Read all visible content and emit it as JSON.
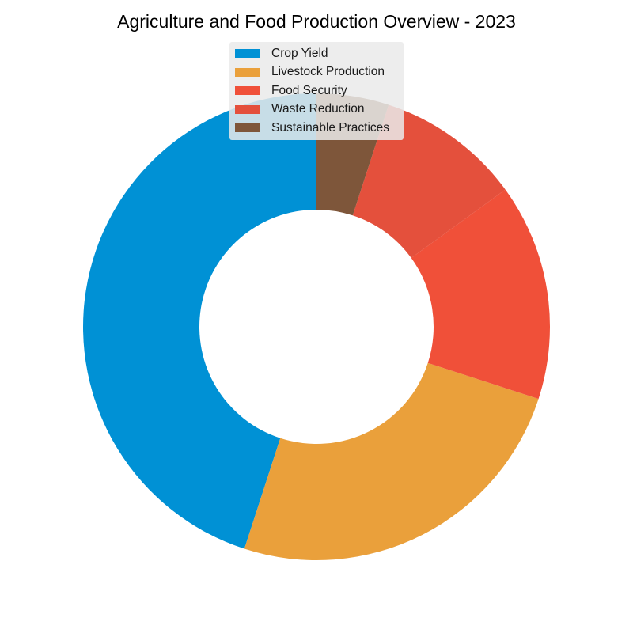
{
  "chart_data": {
    "type": "pie",
    "subtype": "donut",
    "title": "Agriculture and Food Production Overview - 2023",
    "categories": [
      "Crop Yield",
      "Livestock Production",
      "Food Security",
      "Waste Reduction",
      "Sustainable Practices"
    ],
    "values": [
      45,
      25,
      15,
      10,
      5
    ],
    "colors": [
      "#0091D5",
      "#EAA03B",
      "#F05039",
      "#E4503C",
      "#7E563A"
    ],
    "start_angle_deg": 90,
    "direction": "counterclockwise",
    "legend_position": "top-center"
  }
}
